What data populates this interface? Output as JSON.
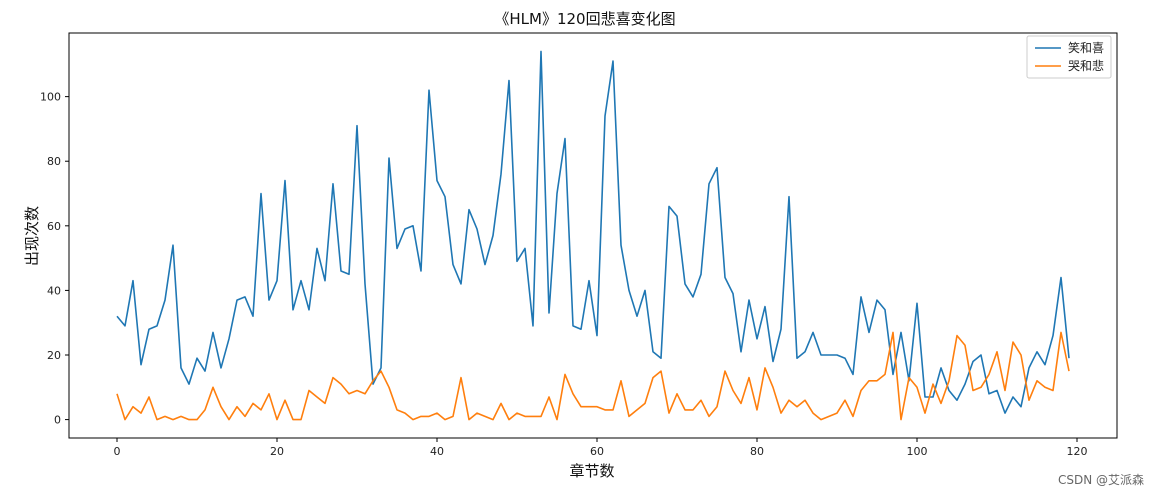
{
  "chart_data": {
    "type": "line",
    "title": "《HLM》120回悲喜变化图",
    "xlabel": "章节数",
    "ylabel": "出现次数",
    "xlim": [
      -6,
      125
    ],
    "ylim": [
      -5.7,
      119.7
    ],
    "xticks": [
      0,
      20,
      40,
      60,
      80,
      100,
      120
    ],
    "yticks": [
      0,
      20,
      40,
      60,
      80,
      100
    ],
    "grid": false,
    "legend_position": "top-right",
    "x": [
      0,
      1,
      2,
      3,
      4,
      5,
      6,
      7,
      8,
      9,
      10,
      11,
      12,
      13,
      14,
      15,
      16,
      17,
      18,
      19,
      20,
      21,
      22,
      23,
      24,
      25,
      26,
      27,
      28,
      29,
      30,
      31,
      32,
      33,
      34,
      35,
      36,
      37,
      38,
      39,
      40,
      41,
      42,
      43,
      44,
      45,
      46,
      47,
      48,
      49,
      50,
      51,
      52,
      53,
      54,
      55,
      56,
      57,
      58,
      59,
      60,
      61,
      62,
      63,
      64,
      65,
      66,
      67,
      68,
      69,
      70,
      71,
      72,
      73,
      74,
      75,
      76,
      77,
      78,
      79,
      80,
      81,
      82,
      83,
      84,
      85,
      86,
      87,
      88,
      89,
      90,
      91,
      92,
      93,
      94,
      95,
      96,
      97,
      98,
      99,
      100,
      101,
      102,
      103,
      104,
      105,
      106,
      107,
      108,
      109,
      110,
      111,
      112,
      113,
      114,
      115,
      116,
      117,
      118,
      119
    ],
    "series": [
      {
        "name": "笑和喜",
        "color": "#1f77b4",
        "values": [
          32,
          29,
          43,
          17,
          28,
          29,
          37,
          54,
          16,
          11,
          19,
          15,
          27,
          16,
          25,
          37,
          38,
          32,
          70,
          37,
          43,
          74,
          34,
          43,
          34,
          53,
          43,
          73,
          46,
          45,
          91,
          42,
          11,
          16,
          81,
          53,
          59,
          60,
          46,
          102,
          74,
          69,
          48,
          42,
          65,
          59,
          48,
          57,
          76,
          105,
          49,
          53,
          29,
          114,
          33,
          70,
          87,
          29,
          28,
          43,
          26,
          94,
          111,
          54,
          40,
          32,
          40,
          21,
          19,
          66,
          63,
          42,
          38,
          45,
          73,
          78,
          44,
          39,
          21,
          37,
          25,
          35,
          18,
          28,
          69,
          19,
          21,
          27,
          20,
          20,
          20,
          19,
          14,
          38,
          27,
          37,
          34,
          14,
          27,
          12,
          36,
          7,
          7,
          16,
          9,
          6,
          11,
          18,
          20,
          8,
          9,
          2,
          7,
          4,
          16,
          21,
          17,
          26,
          44,
          19
        ]
      },
      {
        "name": "哭和悲",
        "color": "#ff7f0e",
        "values": [
          8,
          0,
          4,
          2,
          7,
          0,
          1,
          0,
          1,
          0,
          0,
          3,
          10,
          4,
          0,
          4,
          1,
          5,
          3,
          8,
          0,
          6,
          0,
          0,
          9,
          7,
          5,
          13,
          11,
          8,
          9,
          8,
          12,
          15,
          10,
          3,
          2,
          0,
          1,
          1,
          2,
          0,
          1,
          13,
          0,
          2,
          1,
          0,
          5,
          0,
          2,
          1,
          1,
          1,
          7,
          0,
          14,
          8,
          4,
          4,
          4,
          3,
          3,
          12,
          1,
          3,
          5,
          13,
          15,
          2,
          8,
          3,
          3,
          6,
          1,
          4,
          15,
          9,
          5,
          13,
          3,
          16,
          10,
          2,
          6,
          4,
          6,
          2,
          0,
          1,
          2,
          6,
          1,
          9,
          12,
          12,
          14,
          27,
          0,
          13,
          10,
          2,
          11,
          5,
          12,
          26,
          23,
          9,
          10,
          14,
          21,
          9,
          24,
          20,
          6,
          12,
          10,
          9,
          27,
          15
        ]
      }
    ]
  },
  "watermark": "CSDN @艾派森"
}
